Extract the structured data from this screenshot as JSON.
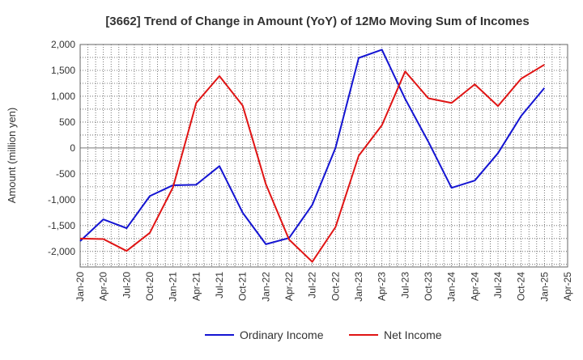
{
  "chart_data": {
    "type": "line",
    "title": "[3662]  Trend of Change in Amount (YoY) of 12Mo Moving Sum of Incomes",
    "ylabel": "Amount (million yen)",
    "xlabel": "",
    "ylim": [
      -2300,
      2000
    ],
    "yticks": [
      2000,
      1500,
      1000,
      500,
      0,
      -500,
      -1000,
      -1500,
      -2000
    ],
    "ytick_labels": [
      "2,000",
      "1,500",
      "1,000",
      "500",
      "0",
      "-500",
      "-1,000",
      "-1,500",
      "-2,000"
    ],
    "x_labels": [
      "Jan-20",
      "Apr-20",
      "Jul-20",
      "Oct-20",
      "Jan-21",
      "Apr-21",
      "Jul-21",
      "Oct-21",
      "Jan-22",
      "Apr-22",
      "Jul-22",
      "Oct-22",
      "Jan-23",
      "Apr-23",
      "Jul-23",
      "Oct-23",
      "Jan-24",
      "Apr-24",
      "Jul-24",
      "Oct-24",
      "Jan-25",
      "Apr-25"
    ],
    "grid": true,
    "legend_position": "bottom",
    "series": [
      {
        "name": "Ordinary Income",
        "color": "#1414d2",
        "values": [
          -1800,
          -1380,
          -1550,
          -930,
          -720,
          -710,
          -350,
          -1250,
          -1860,
          -1740,
          -1100,
          0,
          1740,
          1900,
          950,
          120,
          -770,
          -630,
          -100,
          620,
          1160,
          null
        ]
      },
      {
        "name": "Net Income",
        "color": "#e01414",
        "values": [
          -1750,
          -1760,
          -1990,
          -1640,
          -760,
          870,
          1390,
          820,
          -700,
          -1770,
          -2200,
          -1530,
          -150,
          440,
          1480,
          960,
          870,
          1230,
          810,
          1340,
          1610,
          null
        ]
      }
    ]
  }
}
